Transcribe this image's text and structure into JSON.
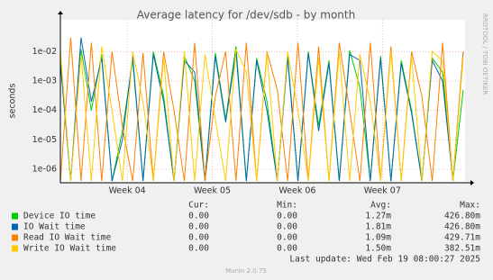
{
  "chart_data": {
    "type": "line",
    "title": "Average latency for /dev/sdb - by month",
    "y_label": "seconds",
    "side_label": "RRDTOOL / TOBI OETIKER",
    "log_scale": true,
    "grid": true,
    "xlim": [
      0,
      33.3
    ],
    "xticks": [
      {
        "value": 5.5,
        "label": "Week 04"
      },
      {
        "value": 12.5,
        "label": "Week 05"
      },
      {
        "value": 19.5,
        "label": "Week 06"
      },
      {
        "value": 26.5,
        "label": "Week 07"
      }
    ],
    "ylim": [
      3.5e-07,
      0.12
    ],
    "yticks": [
      {
        "value": 1e-06,
        "label": "1e-06"
      },
      {
        "value": 1e-05,
        "label": "1e-05"
      },
      {
        "value": 0.0001,
        "label": "1e-04"
      },
      {
        "value": 0.001,
        "label": "1e-03"
      },
      {
        "value": 0.01,
        "label": "1e-02"
      }
    ],
    "x": [
      0,
      0.85,
      1.7,
      2.55,
      3.4,
      4.25,
      5.1,
      5.95,
      6.8,
      7.65,
      8.5,
      9.35,
      10.2,
      11.05,
      11.9,
      12.75,
      13.6,
      14.45,
      15.3,
      16.15,
      17,
      17.85,
      18.7,
      19.55,
      20.4,
      21.25,
      22.1,
      22.95,
      23.8,
      24.65,
      25.5,
      26.35,
      27.2,
      28.05,
      28.9,
      29.75,
      30.6,
      31.45,
      32.3,
      33.15
    ],
    "stat_headers": [
      "Cur:",
      "Min:",
      "Avg:",
      "Max:"
    ],
    "series": [
      {
        "name": "Device IO time",
        "color": "#00cc00",
        "values": [
          0.006,
          4e-07,
          0.012,
          0.0001,
          0.008,
          4e-07,
          2e-05,
          0.005,
          4e-07,
          0.01,
          0.0003,
          4e-07,
          0.007,
          0.001,
          4e-07,
          0.009,
          5e-05,
          0.015,
          4e-07,
          0.006,
          0.0002,
          4e-07,
          0.008,
          4e-07,
          0.01,
          3e-05,
          0.005,
          4e-07,
          0.011,
          0.0006,
          4e-07,
          0.007,
          4e-07,
          0.005,
          0.0001,
          4e-07,
          0.006,
          0.002,
          4e-07,
          0.0005
        ],
        "stats": [
          "0.00",
          "0.00",
          "1.27m",
          "426.80m"
        ]
      },
      {
        "name": "IO Wait time",
        "color": "#0066b3",
        "values": [
          0.004,
          4e-07,
          0.03,
          0.0002,
          0.006,
          4e-07,
          1e-05,
          0.007,
          4e-07,
          0.008,
          0.0002,
          4e-07,
          0.005,
          0.002,
          4e-07,
          0.007,
          4e-05,
          0.01,
          4e-07,
          0.005,
          0.0001,
          4e-07,
          0.006,
          4e-07,
          0.009,
          2e-05,
          0.004,
          4e-07,
          0.008,
          0.005,
          4e-07,
          0.006,
          4e-07,
          0.004,
          8e-05,
          4e-07,
          0.005,
          0.001,
          4e-07,
          0.01
        ],
        "stats": [
          "0.00",
          "0.00",
          "1.81m",
          "426.80m"
        ]
      },
      {
        "name": "Read IO Wait time",
        "color": "#ff8000",
        "values": [
          4e-07,
          0.03,
          4e-07,
          0.02,
          4e-07,
          0.01,
          3e-05,
          4e-07,
          0.009,
          4e-07,
          0.01,
          0.0001,
          4e-07,
          0.02,
          4e-07,
          0.0003,
          0.01,
          4e-07,
          0.02,
          4e-07,
          0.01,
          0.0005,
          4e-07,
          0.02,
          4e-07,
          0.015,
          4e-07,
          0.02,
          0.0001,
          4e-07,
          0.02,
          4e-07,
          0.015,
          4e-07,
          0.01,
          0.0003,
          4e-07,
          0.02,
          4e-07,
          0.01
        ],
        "stats": [
          "0.00",
          "0.00",
          "1.09m",
          "429.71m"
        ]
      },
      {
        "name": "Write IO Wait time",
        "color": "#ffcc00",
        "values": [
          0.01,
          4e-07,
          0.008,
          4e-07,
          0.015,
          0.0001,
          4e-07,
          0.01,
          0.0002,
          4e-07,
          0.006,
          4e-07,
          0.01,
          4e-07,
          0.008,
          5e-05,
          4e-07,
          0.012,
          0.002,
          4e-07,
          0.009,
          4e-07,
          0.01,
          0.0001,
          4e-07,
          0.006,
          4e-07,
          0.01,
          4e-07,
          0.008,
          0.0002,
          4e-07,
          0.01,
          4e-07,
          0.007,
          4e-07,
          0.01,
          0.005,
          4e-07,
          0.006
        ],
        "stats": [
          "0.00",
          "0.00",
          "1.50m",
          "382.51m"
        ]
      }
    ],
    "last_update": "Last update: Wed Feb 19 08:00:27 2025",
    "footer": "Munin 2.0.75"
  }
}
